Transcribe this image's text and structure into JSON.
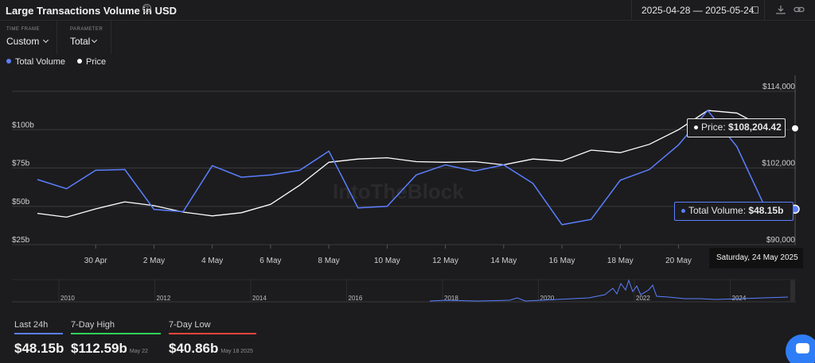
{
  "header": {
    "title": "Large Transactions Volume in USD",
    "help_icon": "question-circle-icon",
    "date_start": "2025-04-28",
    "date_sep": "—",
    "date_end": "2025-05-24",
    "calendar_icon": "calendar-icon",
    "download_icon": "download-icon",
    "share_icon": "link-icon"
  },
  "controls": {
    "timeframe": {
      "caption": "TIME FRAME",
      "value": "Custom"
    },
    "parameter": {
      "caption": "PARAMETER",
      "value": "Total"
    }
  },
  "colors": {
    "volume": "#5b7fff",
    "price": "#ffffff",
    "low": "#ff453a",
    "high": "#30d158"
  },
  "chart_data": {
    "type": "line",
    "x": [
      "2025-04-28",
      "2025-04-29",
      "2025-04-30",
      "2025-05-01",
      "2025-05-02",
      "2025-05-03",
      "2025-05-04",
      "2025-05-05",
      "2025-05-06",
      "2025-05-07",
      "2025-05-08",
      "2025-05-09",
      "2025-05-10",
      "2025-05-11",
      "2025-05-12",
      "2025-05-13",
      "2025-05-14",
      "2025-05-15",
      "2025-05-16",
      "2025-05-17",
      "2025-05-18",
      "2025-05-19",
      "2025-05-20",
      "2025-05-21",
      "2025-05-22",
      "2025-05-23",
      "2025-05-24"
    ],
    "x_tick_labels": [
      "30 Apr",
      "2 May",
      "4 May",
      "6 May",
      "8 May",
      "10 May",
      "12 May",
      "14 May",
      "16 May",
      "18 May",
      "20 May"
    ],
    "x_tick_dates": [
      "2025-04-30",
      "2025-05-02",
      "2025-05-04",
      "2025-05-06",
      "2025-05-08",
      "2025-05-10",
      "2025-05-12",
      "2025-05-14",
      "2025-05-16",
      "2025-05-18",
      "2025-05-20"
    ],
    "series": [
      {
        "name": "Total Volume",
        "axis": "left",
        "values": [
          67.5,
          61.5,
          73.5,
          74,
          48,
          46.5,
          76.5,
          69,
          70.5,
          73.5,
          86,
          49,
          50,
          70.5,
          77,
          73,
          77,
          65,
          38,
          41.5,
          67,
          74,
          90,
          112.59,
          89,
          48.15,
          48.15
        ]
      },
      {
        "name": "Price",
        "axis": "right",
        "values": [
          94900,
          94300,
          95600,
          96700,
          96100,
          95100,
          94500,
          95000,
          96300,
          99300,
          102900,
          103400,
          103600,
          103000,
          102900,
          103000,
          102500,
          103400,
          103100,
          104800,
          104400,
          105700,
          108000,
          111000,
          110600,
          108204.42,
          108204.42
        ]
      }
    ],
    "left_axis": {
      "ticks": [
        "$25b",
        "$50b",
        "$75b",
        "$100b"
      ],
      "ylim": [
        25,
        125
      ]
    },
    "right_axis": {
      "ticks": [
        "$90,000",
        "$102,000",
        "$114,000"
      ],
      "ylim": [
        90000,
        114000
      ]
    },
    "tooltip": {
      "price_label": "Price:",
      "price_value": "$108,204.42",
      "volume_label": "Total Volume:",
      "volume_value": "$48.15b",
      "date": "Saturday, 24 May 2025"
    },
    "navigator_years": [
      "2010",
      "2012",
      "2014",
      "2016",
      "2018",
      "2020",
      "2022",
      "2024"
    ]
  },
  "legend": [
    {
      "name": "Total Volume"
    },
    {
      "name": "Price"
    }
  ],
  "summary": [
    {
      "label": "Last 24h",
      "value": "$48.15b",
      "date": "",
      "bar_color": "#5b7fff"
    },
    {
      "label": "7-Day High",
      "value": "$112.59b",
      "date": "May 22 2025",
      "bar_color": "#30d158"
    },
    {
      "label": "7-Day Low",
      "value": "$40.86b",
      "date": "May 18 2025",
      "bar_color": "#ff453a"
    }
  ],
  "watermark": "IntoTheBlock",
  "chat_icon": "chat-bubble-icon"
}
